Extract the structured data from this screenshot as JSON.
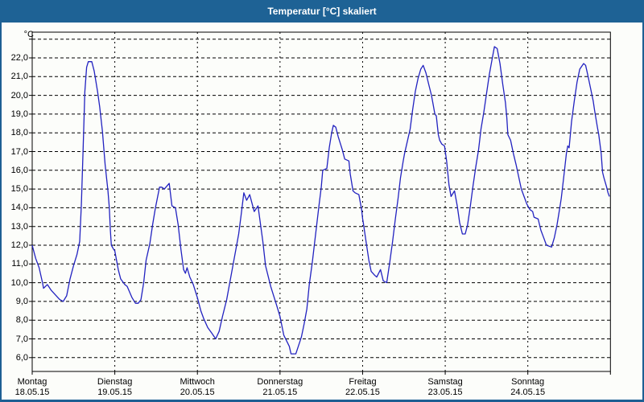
{
  "window": {
    "title": "Temperatur [°C] skaliert"
  },
  "colors": {
    "titlebar": "#1e6295",
    "frame": "#1d5f93",
    "background": "#fcfdfa",
    "grid": "#000000",
    "line": "#2222c0"
  },
  "chart_data": {
    "type": "line",
    "title": "Temperatur [°C] skaliert",
    "ylabel": "°C",
    "xlabel": "",
    "grid": "dashed",
    "legend_position": "none",
    "ylim": [
      6,
      23
    ],
    "y_gridline_values": [
      23,
      22,
      21,
      20,
      19,
      18,
      17,
      16,
      15,
      14,
      13,
      12,
      11,
      10,
      9,
      8,
      7,
      6
    ],
    "y_ticks": [
      {
        "value": 22,
        "label": "22,0"
      },
      {
        "value": 21,
        "label": "21,0"
      },
      {
        "value": 20,
        "label": "20,0"
      },
      {
        "value": 19,
        "label": "19,0"
      },
      {
        "value": 18,
        "label": "18,0"
      },
      {
        "value": 17,
        "label": "17,0"
      },
      {
        "value": 16,
        "label": "16,0"
      },
      {
        "value": 15,
        "label": "15,0"
      },
      {
        "value": 14,
        "label": "14,0"
      },
      {
        "value": 13,
        "label": "13,0"
      },
      {
        "value": 12,
        "label": "12,0"
      },
      {
        "value": 11,
        "label": "11,0"
      },
      {
        "value": 10,
        "label": "10,0"
      },
      {
        "value": 9,
        "label": "9,0"
      },
      {
        "value": 8,
        "label": "8,0"
      },
      {
        "value": 7,
        "label": "7,0"
      },
      {
        "value": 6,
        "label": "6,0"
      }
    ],
    "x_days": [
      {
        "name": "Montag",
        "date": "18.05.15"
      },
      {
        "name": "Dienstag",
        "date": "19.05.15"
      },
      {
        "name": "Mittwoch",
        "date": "20.05.15"
      },
      {
        "name": "Donnerstag",
        "date": "21.05.15"
      },
      {
        "name": "Freitag",
        "date": "22.05.15"
      },
      {
        "name": "Samstag",
        "date": "23.05.15"
      },
      {
        "name": "Sonntag",
        "date": "24.05.15"
      }
    ],
    "hours_total": 168,
    "series": [
      {
        "name": "Temperatur [°C]",
        "color": "#2222c0",
        "points_hour_temp": [
          [
            0,
            12.0
          ],
          [
            1,
            11.3
          ],
          [
            2,
            10.8
          ],
          [
            3,
            10.0
          ],
          [
            3.3,
            9.7
          ],
          [
            4.4,
            9.9
          ],
          [
            5.5,
            9.6
          ],
          [
            7,
            9.3
          ],
          [
            8,
            9.1
          ],
          [
            9,
            9.0
          ],
          [
            10,
            9.3
          ],
          [
            11,
            10.2
          ],
          [
            12,
            10.9
          ],
          [
            13,
            11.5
          ],
          [
            13.8,
            12.2
          ],
          [
            14.3,
            14.2
          ],
          [
            14.8,
            17.2
          ],
          [
            15.3,
            20.2
          ],
          [
            15.8,
            21.5
          ],
          [
            16.3,
            21.8
          ],
          [
            17.3,
            21.8
          ],
          [
            18,
            21.3
          ],
          [
            19,
            20.2
          ],
          [
            19.6,
            19.4
          ],
          [
            20.4,
            18.1
          ],
          [
            21.2,
            16.3
          ],
          [
            22,
            14.9
          ],
          [
            22.4,
            14.0
          ],
          [
            22.7,
            12.8
          ],
          [
            23,
            12.0
          ],
          [
            23.6,
            11.8
          ],
          [
            24,
            11.7
          ],
          [
            25,
            10.7
          ],
          [
            25.7,
            10.2
          ],
          [
            26.9,
            9.9
          ],
          [
            27.6,
            9.8
          ],
          [
            29,
            9.2
          ],
          [
            30,
            8.9
          ],
          [
            30.8,
            8.9
          ],
          [
            31.6,
            9.1
          ],
          [
            32.4,
            10.0
          ],
          [
            33.1,
            11.2
          ],
          [
            34.2,
            12.1
          ],
          [
            35,
            13.1
          ],
          [
            35.8,
            14.0
          ],
          [
            37,
            15.1
          ],
          [
            37.6,
            15.1
          ],
          [
            38.4,
            15.0
          ],
          [
            39.8,
            15.3
          ],
          [
            40.6,
            14.1
          ],
          [
            41.6,
            14.0
          ],
          [
            42.4,
            13.1
          ],
          [
            43.2,
            11.8
          ],
          [
            44,
            10.7
          ],
          [
            44.5,
            10.5
          ],
          [
            45,
            10.8
          ],
          [
            45.8,
            10.3
          ],
          [
            46.8,
            9.9
          ],
          [
            48,
            9.2
          ],
          [
            49,
            8.5
          ],
          [
            49.8,
            8.1
          ],
          [
            51,
            7.6
          ],
          [
            52.2,
            7.3
          ],
          [
            53.3,
            7.0
          ],
          [
            54.3,
            7.4
          ],
          [
            55.3,
            8.2
          ],
          [
            56.5,
            9.1
          ],
          [
            57.6,
            10.2
          ],
          [
            58.4,
            11.0
          ],
          [
            59.2,
            11.8
          ],
          [
            60,
            12.6
          ],
          [
            60.7,
            13.6
          ],
          [
            61.5,
            14.8
          ],
          [
            62.3,
            14.4
          ],
          [
            63.2,
            14.7
          ],
          [
            64.5,
            13.8
          ],
          [
            65.6,
            14.1
          ],
          [
            67,
            12.2
          ],
          [
            67.8,
            10.9
          ],
          [
            69.3,
            9.8
          ],
          [
            71,
            8.8
          ],
          [
            72,
            8.2
          ],
          [
            73.1,
            7.2
          ],
          [
            74.7,
            6.6
          ],
          [
            75.2,
            6.2
          ],
          [
            76.6,
            6.2
          ],
          [
            78.2,
            7.1
          ],
          [
            79,
            7.8
          ],
          [
            79.8,
            8.6
          ],
          [
            80.5,
            9.9
          ],
          [
            81.4,
            11.1
          ],
          [
            82.1,
            12.2
          ],
          [
            83.3,
            14.1
          ],
          [
            84,
            15.1
          ],
          [
            84.4,
            16.0
          ],
          [
            85.6,
            16.1
          ],
          [
            86.3,
            17.2
          ],
          [
            87,
            18.0
          ],
          [
            87.5,
            18.4
          ],
          [
            88.2,
            18.3
          ],
          [
            88.9,
            17.8
          ],
          [
            90.1,
            17.1
          ],
          [
            90.8,
            16.6
          ],
          [
            92,
            16.5
          ],
          [
            92.4,
            15.8
          ],
          [
            93.2,
            14.9
          ],
          [
            93.8,
            14.8
          ],
          [
            94.9,
            14.7
          ],
          [
            95.7,
            13.9
          ],
          [
            96,
            13.4
          ],
          [
            96.2,
            13.2
          ],
          [
            97,
            12.2
          ],
          [
            97.8,
            11.2
          ],
          [
            98.5,
            10.6
          ],
          [
            99.5,
            10.4
          ],
          [
            100.1,
            10.3
          ],
          [
            101.2,
            10.7
          ],
          [
            102,
            10.1
          ],
          [
            103,
            10.0
          ],
          [
            103.9,
            11.1
          ],
          [
            104.7,
            12.2
          ],
          [
            105.5,
            13.4
          ],
          [
            106.3,
            14.5
          ],
          [
            107,
            15.6
          ],
          [
            107.8,
            16.5
          ],
          [
            108.2,
            16.9
          ],
          [
            109.8,
            18.2
          ],
          [
            110.5,
            19.2
          ],
          [
            111.3,
            20.2
          ],
          [
            112.1,
            20.9
          ],
          [
            112.9,
            21.4
          ],
          [
            113.6,
            21.6
          ],
          [
            114.4,
            21.2
          ],
          [
            115.2,
            20.6
          ],
          [
            116,
            20.0
          ],
          [
            116.4,
            19.6
          ],
          [
            117,
            19.0
          ],
          [
            117.4,
            18.9
          ],
          [
            118,
            17.9
          ],
          [
            118.4,
            17.6
          ],
          [
            119,
            17.4
          ],
          [
            119.8,
            17.3
          ],
          [
            120.4,
            16.5
          ],
          [
            121.1,
            15.2
          ],
          [
            121.7,
            14.6
          ],
          [
            122.7,
            14.9
          ],
          [
            123.5,
            14.1
          ],
          [
            124.2,
            13.2
          ],
          [
            125,
            12.6
          ],
          [
            125.8,
            12.6
          ],
          [
            126.5,
            13.1
          ],
          [
            127.3,
            14.1
          ],
          [
            128.1,
            15.2
          ],
          [
            128.9,
            16.2
          ],
          [
            129.7,
            17.1
          ],
          [
            130.4,
            18.2
          ],
          [
            131.2,
            19.1
          ],
          [
            132,
            20.1
          ],
          [
            132.8,
            21.1
          ],
          [
            133.6,
            21.9
          ],
          [
            134.3,
            22.6
          ],
          [
            135.1,
            22.5
          ],
          [
            135.9,
            21.7
          ],
          [
            136.7,
            20.6
          ],
          [
            137.5,
            19.6
          ],
          [
            137.9,
            18.8
          ],
          [
            138.2,
            17.9
          ],
          [
            139,
            17.6
          ],
          [
            139.8,
            16.9
          ],
          [
            140.6,
            16.3
          ],
          [
            141.4,
            15.6
          ],
          [
            142.1,
            15.0
          ],
          [
            142.9,
            14.6
          ],
          [
            143.7,
            14.2
          ],
          [
            144.6,
            13.9
          ],
          [
            145.4,
            13.8
          ],
          [
            145.8,
            13.5
          ],
          [
            147,
            13.4
          ],
          [
            147.8,
            12.8
          ],
          [
            148.6,
            12.4
          ],
          [
            149.4,
            12.0
          ],
          [
            150.9,
            11.9
          ],
          [
            151.7,
            12.4
          ],
          [
            152.5,
            13.1
          ],
          [
            153.3,
            14.0
          ],
          [
            153.7,
            14.5
          ],
          [
            154.4,
            15.6
          ],
          [
            155.2,
            16.9
          ],
          [
            155.6,
            17.3
          ],
          [
            156,
            17.2
          ],
          [
            156.7,
            18.6
          ],
          [
            157.5,
            19.7
          ],
          [
            158.3,
            20.7
          ],
          [
            159.1,
            21.4
          ],
          [
            160.2,
            21.7
          ],
          [
            160.8,
            21.6
          ],
          [
            161.4,
            21.1
          ],
          [
            162.2,
            20.4
          ],
          [
            163,
            19.7
          ],
          [
            163.4,
            19.2
          ],
          [
            164.2,
            18.3
          ],
          [
            164.6,
            17.9
          ],
          [
            165.3,
            16.9
          ],
          [
            165.7,
            15.9
          ],
          [
            166.1,
            15.6
          ],
          [
            166.9,
            15.1
          ],
          [
            167.3,
            14.8
          ],
          [
            167.7,
            14.6
          ]
        ]
      }
    ]
  }
}
